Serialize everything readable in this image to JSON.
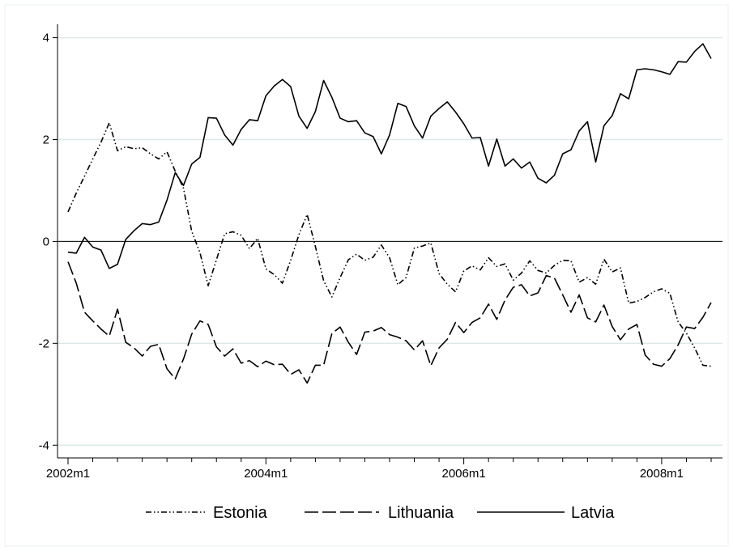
{
  "chart_data": {
    "type": "line",
    "title": "",
    "xlabel": "",
    "ylabel": "",
    "x_start": "2002m1",
    "x_end": "2008m5",
    "x_ticks": [
      "2002m1",
      "2004m1",
      "2006m1",
      "2008m1"
    ],
    "y_ticks": [
      -4,
      -2,
      0,
      2,
      4
    ],
    "ylim": [
      -4.25,
      4.2
    ],
    "reference_line_y": 0,
    "grid": "horizontal",
    "legend_position": "bottom",
    "colors": {
      "line": "#000000",
      "grid": "#dce9e9",
      "axis": "#000000",
      "background": "#ffffff",
      "frame": "#eaf2f2"
    },
    "series": [
      {
        "name": "Estonia",
        "dash": "dash-dot-dot",
        "values": [
          0.58,
          0.95,
          1.28,
          1.62,
          1.95,
          2.33,
          1.78,
          1.86,
          1.82,
          1.84,
          1.72,
          1.62,
          1.76,
          1.38,
          1.05,
          0.2,
          -0.22,
          -0.87,
          -0.36,
          0.15,
          0.19,
          0.12,
          -0.14,
          0.06,
          -0.54,
          -0.65,
          -0.82,
          -0.37,
          0.13,
          0.53,
          -0.1,
          -0.77,
          -1.09,
          -0.71,
          -0.36,
          -0.25,
          -0.37,
          -0.31,
          -0.07,
          -0.32,
          -0.85,
          -0.71,
          -0.13,
          -0.09,
          -0.03,
          -0.63,
          -0.84,
          -0.99,
          -0.58,
          -0.48,
          -0.56,
          -0.32,
          -0.49,
          -0.44,
          -0.76,
          -0.62,
          -0.38,
          -0.57,
          -0.62,
          -0.47,
          -0.37,
          -0.38,
          -0.8,
          -0.71,
          -0.84,
          -0.35,
          -0.6,
          -0.52,
          -1.21,
          -1.18,
          -1.1,
          -0.99,
          -0.93,
          -1.02,
          -1.58,
          -1.8,
          -2.09,
          -2.43,
          -2.45
        ]
      },
      {
        "name": "Lithuania",
        "dash": "long-dash",
        "values": [
          -0.4,
          -0.82,
          -1.39,
          -1.56,
          -1.72,
          -1.86,
          -1.33,
          -1.98,
          -2.09,
          -2.25,
          -2.06,
          -2.02,
          -2.5,
          -2.7,
          -2.31,
          -1.82,
          -1.56,
          -1.63,
          -2.07,
          -2.25,
          -2.11,
          -2.39,
          -2.34,
          -2.46,
          -2.35,
          -2.42,
          -2.41,
          -2.61,
          -2.52,
          -2.78,
          -2.43,
          -2.43,
          -1.81,
          -1.68,
          -1.98,
          -2.22,
          -1.78,
          -1.76,
          -1.69,
          -1.83,
          -1.88,
          -1.95,
          -2.13,
          -1.95,
          -2.44,
          -2.09,
          -1.92,
          -1.59,
          -1.79,
          -1.59,
          -1.5,
          -1.23,
          -1.53,
          -1.15,
          -0.9,
          -0.85,
          -1.07,
          -1.01,
          -0.67,
          -0.72,
          -1.05,
          -1.39,
          -1.05,
          -1.5,
          -1.58,
          -1.25,
          -1.67,
          -1.93,
          -1.72,
          -1.63,
          -2.23,
          -2.41,
          -2.45,
          -2.3,
          -2.03,
          -1.68,
          -1.71,
          -1.49,
          -1.2
        ]
      },
      {
        "name": "Latvia",
        "dash": "solid",
        "values": [
          -0.21,
          -0.23,
          0.08,
          -0.11,
          -0.17,
          -0.53,
          -0.45,
          0.04,
          0.21,
          0.35,
          0.33,
          0.38,
          0.81,
          1.35,
          1.1,
          1.52,
          1.65,
          2.43,
          2.42,
          2.09,
          1.89,
          2.2,
          2.39,
          2.37,
          2.86,
          3.05,
          3.18,
          3.04,
          2.46,
          2.22,
          2.55,
          3.16,
          2.83,
          2.42,
          2.35,
          2.37,
          2.13,
          2.06,
          1.72,
          2.09,
          2.71,
          2.65,
          2.27,
          2.03,
          2.46,
          2.61,
          2.74,
          2.54,
          2.31,
          2.03,
          2.04,
          1.48,
          2.01,
          1.48,
          1.62,
          1.44,
          1.56,
          1.24,
          1.15,
          1.3,
          1.72,
          1.8,
          2.17,
          2.35,
          1.56,
          2.27,
          2.47,
          2.9,
          2.8,
          3.37,
          3.39,
          3.37,
          3.33,
          3.28,
          3.53,
          3.52,
          3.73,
          3.88,
          3.59
        ]
      }
    ]
  }
}
